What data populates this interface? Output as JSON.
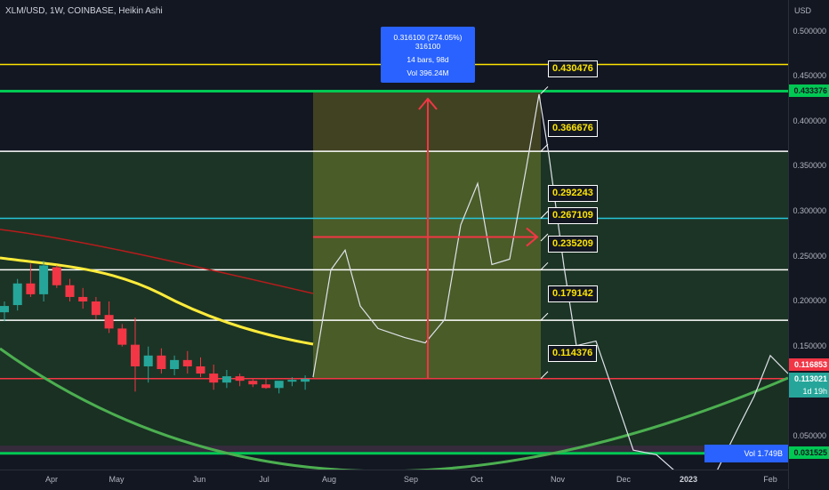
{
  "header": {
    "title": "XLM/USD, 1W, COINBASE, Heikin Ashi"
  },
  "price_axis": {
    "currency": "USD",
    "labels": [
      "0.500000",
      "0.450000",
      "0.400000",
      "0.350000",
      "0.300000",
      "0.250000",
      "0.200000",
      "0.150000",
      "0.050000"
    ],
    "tags": [
      {
        "value": "0.433376",
        "bg": "#00c853",
        "fg": "#131722"
      },
      {
        "value": "0.116853",
        "bg": "#f23645",
        "fg": "#ffffff"
      },
      {
        "value": "0.113021",
        "bg": "#26a69a",
        "fg": "#ffffff"
      },
      {
        "value": "1d 19h",
        "bg": "#26a69a",
        "fg": "#ffffff"
      },
      {
        "value": "0.031525",
        "bg": "#00c853",
        "fg": "#131722"
      }
    ]
  },
  "time_axis": {
    "labels": [
      "Apr",
      "May",
      "Jun",
      "Jul",
      "Aug",
      "Sep",
      "Oct",
      "Nov",
      "Dec",
      "2023",
      "Feb"
    ]
  },
  "callouts": [
    "0.430476",
    "0.366676",
    "0.292243",
    "0.267109",
    "0.235209",
    "0.179142",
    "0.114376"
  ],
  "measure": {
    "line1": "0.316100 (274.05%) 316100",
    "line2": "14 bars, 98d",
    "line3": "Vol 396.24M"
  },
  "volume": {
    "label": "Vol 1.749B"
  },
  "colors": {
    "background": "#131722",
    "bull": "#26a69a",
    "bear": "#f23645",
    "fib_yellow": "#fde400",
    "fib_green": "#00c853",
    "fib_teal": "#26c6da",
    "ma_yellow": "#ffeb3b",
    "ma_red": "#b71c1c",
    "arc_green": "#4caf50",
    "measure_blue": "#2962ff"
  },
  "chart_data": {
    "type": "candlestick",
    "symbol": "XLM/USD",
    "timeframe": "1W",
    "exchange": "COINBASE",
    "style": "Heikin Ashi",
    "ylim": [
      0.0,
      0.52
    ],
    "candles": [
      {
        "o": 0.188,
        "h": 0.2,
        "l": 0.178,
        "c": 0.195
      },
      {
        "o": 0.196,
        "h": 0.225,
        "l": 0.19,
        "c": 0.22
      },
      {
        "o": 0.22,
        "h": 0.242,
        "l": 0.205,
        "c": 0.208
      },
      {
        "o": 0.208,
        "h": 0.245,
        "l": 0.2,
        "c": 0.24
      },
      {
        "o": 0.238,
        "h": 0.24,
        "l": 0.215,
        "c": 0.218
      },
      {
        "o": 0.218,
        "h": 0.225,
        "l": 0.2,
        "c": 0.205
      },
      {
        "o": 0.205,
        "h": 0.215,
        "l": 0.192,
        "c": 0.2
      },
      {
        "o": 0.2,
        "h": 0.205,
        "l": 0.18,
        "c": 0.185
      },
      {
        "o": 0.185,
        "h": 0.2,
        "l": 0.165,
        "c": 0.17
      },
      {
        "o": 0.17,
        "h": 0.175,
        "l": 0.15,
        "c": 0.152
      },
      {
        "o": 0.152,
        "h": 0.182,
        "l": 0.1,
        "c": 0.128
      },
      {
        "o": 0.128,
        "h": 0.15,
        "l": 0.11,
        "c": 0.14
      },
      {
        "o": 0.14,
        "h": 0.148,
        "l": 0.12,
        "c": 0.125
      },
      {
        "o": 0.125,
        "h": 0.14,
        "l": 0.118,
        "c": 0.135
      },
      {
        "o": 0.135,
        "h": 0.145,
        "l": 0.12,
        "c": 0.128
      },
      {
        "o": 0.128,
        "h": 0.138,
        "l": 0.116,
        "c": 0.12
      },
      {
        "o": 0.12,
        "h": 0.13,
        "l": 0.102,
        "c": 0.11
      },
      {
        "o": 0.11,
        "h": 0.124,
        "l": 0.104,
        "c": 0.117
      },
      {
        "o": 0.117,
        "h": 0.12,
        "l": 0.106,
        "c": 0.112
      },
      {
        "o": 0.112,
        "h": 0.115,
        "l": 0.105,
        "c": 0.108
      },
      {
        "o": 0.108,
        "h": 0.115,
        "l": 0.103,
        "c": 0.104
      },
      {
        "o": 0.104,
        "h": 0.11,
        "l": 0.098,
        "c": 0.112
      },
      {
        "o": 0.111,
        "h": 0.116,
        "l": 0.106,
        "c": 0.113
      },
      {
        "o": 0.111,
        "h": 0.118,
        "l": 0.102,
        "c": 0.114
      }
    ],
    "projection_line": [
      {
        "x": 352,
        "y": 0.116
      },
      {
        "x": 372,
        "y": 0.235
      },
      {
        "x": 388,
        "y": 0.257
      },
      {
        "x": 405,
        "y": 0.195
      },
      {
        "x": 425,
        "y": 0.17
      },
      {
        "x": 455,
        "y": 0.16
      },
      {
        "x": 478,
        "y": 0.154
      },
      {
        "x": 500,
        "y": 0.18
      },
      {
        "x": 518,
        "y": 0.285
      },
      {
        "x": 537,
        "y": 0.331
      },
      {
        "x": 553,
        "y": 0.241
      },
      {
        "x": 573,
        "y": 0.247
      },
      {
        "x": 592,
        "y": 0.35
      },
      {
        "x": 606,
        "y": 0.43
      },
      {
        "x": 617,
        "y": 0.363
      },
      {
        "x": 634,
        "y": 0.239
      },
      {
        "x": 648,
        "y": 0.151
      },
      {
        "x": 670,
        "y": 0.156
      },
      {
        "x": 693,
        "y": 0.09
      },
      {
        "x": 712,
        "y": 0.035
      },
      {
        "x": 738,
        "y": 0.03
      },
      {
        "x": 770,
        "y": 0.002
      },
      {
        "x": 805,
        "y": 0.01
      },
      {
        "x": 830,
        "y": 0.06
      },
      {
        "x": 848,
        "y": 0.095
      },
      {
        "x": 866,
        "y": 0.14
      },
      {
        "x": 886,
        "y": 0.12
      }
    ],
    "fib_levels": [
      {
        "value": 0.463,
        "color": "#fde400"
      },
      {
        "value": 0.433376,
        "color": "#00c853"
      },
      {
        "value": 0.366676,
        "color": "#ffffff"
      },
      {
        "value": 0.292243,
        "color": "#26c6da"
      },
      {
        "value": 0.235209,
        "color": "#ffffff"
      },
      {
        "value": 0.179142,
        "color": "#ffffff"
      },
      {
        "value": 0.114376,
        "color": "#f23645"
      },
      {
        "value": 0.031525,
        "color": "#00c853"
      }
    ]
  }
}
